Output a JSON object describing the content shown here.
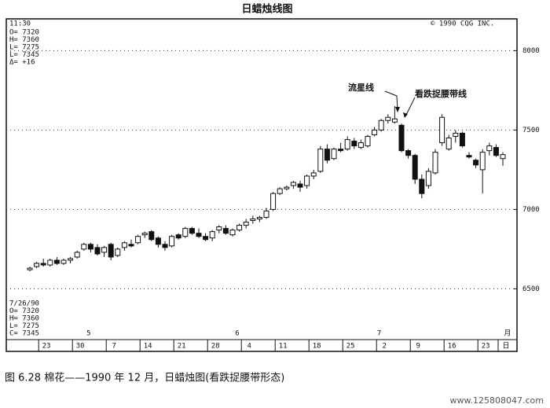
{
  "chart_data": {
    "type": "candlestick",
    "title": "日蜡烛线图",
    "time": "11:30",
    "copyright": "© 1990 CQG INC.",
    "top_info": [
      "O= 7320",
      "H= 7360",
      "L= 7275",
      "L= 7345",
      "Δ=  +16"
    ],
    "bottom_info": [
      "7/26/90",
      "O=  7320",
      "H=  7360",
      "L=  7275",
      "C=  7345"
    ],
    "annotations": [
      "流星线",
      "看跌捉腰带线"
    ],
    "caption": "图 6.28  棉花——1990 年 12 月，日蜡烛图(看跌捉腰带形态)",
    "watermark": "www.125808047.com",
    "categories": [
      null,
      null,
      "23",
      null,
      null,
      null,
      null,
      "30",
      null,
      null,
      null,
      null,
      "7",
      null,
      null,
      null,
      null,
      "14",
      null,
      null,
      null,
      null,
      "21",
      null,
      null,
      null,
      null,
      "28",
      null,
      null,
      null,
      null,
      "4",
      null,
      null,
      null,
      null,
      "11",
      null,
      null,
      null,
      null,
      "18",
      null,
      null,
      null,
      null,
      "25",
      null,
      null,
      null,
      null,
      "2",
      null,
      null,
      null,
      null,
      "9",
      null,
      null,
      null,
      null,
      "16",
      null,
      null,
      null,
      null,
      "23",
      null,
      null,
      "日"
    ],
    "month_labels": [
      null,
      null,
      null,
      null,
      null,
      null,
      null,
      null,
      "5",
      null,
      null,
      null,
      null,
      null,
      null,
      null,
      null,
      null,
      null,
      null,
      null,
      null,
      null,
      null,
      null,
      null,
      null,
      null,
      null,
      null,
      "6",
      null,
      null,
      null,
      null,
      null,
      null,
      null,
      null,
      null,
      null,
      null,
      null,
      null,
      null,
      null,
      null,
      null,
      null,
      null,
      null,
      "7",
      null,
      null,
      null,
      null,
      null,
      null,
      null,
      null,
      null,
      null,
      null,
      null,
      null,
      null,
      null,
      null,
      null,
      null,
      "月"
    ],
    "open": [
      6620,
      6640,
      6660,
      6650,
      6680,
      6660,
      6680,
      6700,
      6750,
      6780,
      6760,
      6730,
      6780,
      6710,
      6760,
      6780,
      6790,
      6840,
      6860,
      6820,
      6780,
      6770,
      6840,
      6830,
      6880,
      6850,
      6830,
      6820,
      6870,
      6880,
      6840,
      6870,
      6900,
      6930,
      6940,
      6950,
      7000,
      7100,
      7130,
      7150,
      7160,
      7150,
      7210,
      7240,
      7380,
      7320,
      7380,
      7380,
      7430,
      7390,
      7400,
      7470,
      7500,
      7560,
      7550,
      7530,
      7370,
      7340,
      7190,
      7150,
      7230,
      7420,
      7380,
      7460,
      7480,
      7340,
      7310,
      7250,
      7370,
      7390,
      7320
    ],
    "high": [
      6640,
      6670,
      6690,
      6690,
      6700,
      6690,
      6700,
      6740,
      6790,
      6790,
      6780,
      6770,
      6790,
      6760,
      6800,
      6810,
      6840,
      6860,
      6870,
      6830,
      6800,
      6840,
      6850,
      6890,
      6890,
      6880,
      6850,
      6870,
      6900,
      6900,
      6880,
      6910,
      6940,
      6960,
      6960,
      7010,
      7110,
      7140,
      7150,
      7180,
      7180,
      7220,
      7250,
      7400,
      7410,
      7390,
      7420,
      7460,
      7450,
      7440,
      7470,
      7520,
      7570,
      7600,
      7650,
      7540,
      7380,
      7350,
      7220,
      7260,
      7380,
      7600,
      7470,
      7500,
      7490,
      7360,
      7320,
      7380,
      7420,
      7410,
      7360
    ],
    "low": [
      6610,
      6630,
      6640,
      6640,
      6650,
      6650,
      6660,
      6690,
      6740,
      6730,
      6710,
      6700,
      6680,
      6700,
      6740,
      6760,
      6780,
      6820,
      6800,
      6760,
      6740,
      6760,
      6810,
      6820,
      6840,
      6820,
      6800,
      6800,
      6850,
      6840,
      6830,
      6860,
      6880,
      6910,
      6920,
      6940,
      6990,
      7090,
      7120,
      7130,
      7110,
      7130,
      7190,
      7230,
      7290,
      7310,
      7360,
      7370,
      7380,
      7380,
      7390,
      7460,
      7490,
      7540,
      7540,
      7360,
      7320,
      7160,
      7070,
      7130,
      7220,
      7400,
      7370,
      7420,
      7390,
      7320,
      7260,
      7100,
      7340,
      7330,
      7275
    ],
    "close": [
      6630,
      6660,
      6650,
      6680,
      6660,
      6680,
      6690,
      6730,
      6780,
      6750,
      6720,
      6760,
      6700,
      6750,
      6790,
      6770,
      6830,
      6850,
      6810,
      6780,
      6760,
      6830,
      6820,
      6880,
      6850,
      6830,
      6810,
      6860,
      6890,
      6850,
      6870,
      6900,
      6920,
      6940,
      6950,
      6990,
      7100,
      7130,
      7140,
      7170,
      7140,
      7210,
      7230,
      7380,
      7310,
      7380,
      7370,
      7440,
      7400,
      7420,
      7460,
      7500,
      7560,
      7580,
      7570,
      7370,
      7340,
      7190,
      7100,
      7240,
      7360,
      7580,
      7450,
      7480,
      7400,
      7330,
      7280,
      7360,
      7400,
      7340,
      7345
    ],
    "ylim": [
      6180,
      8200
    ],
    "yticks": [
      6500,
      7000,
      7500,
      8000
    ],
    "grid": true,
    "up_color": "#ffffff",
    "down_color": "#111111"
  }
}
